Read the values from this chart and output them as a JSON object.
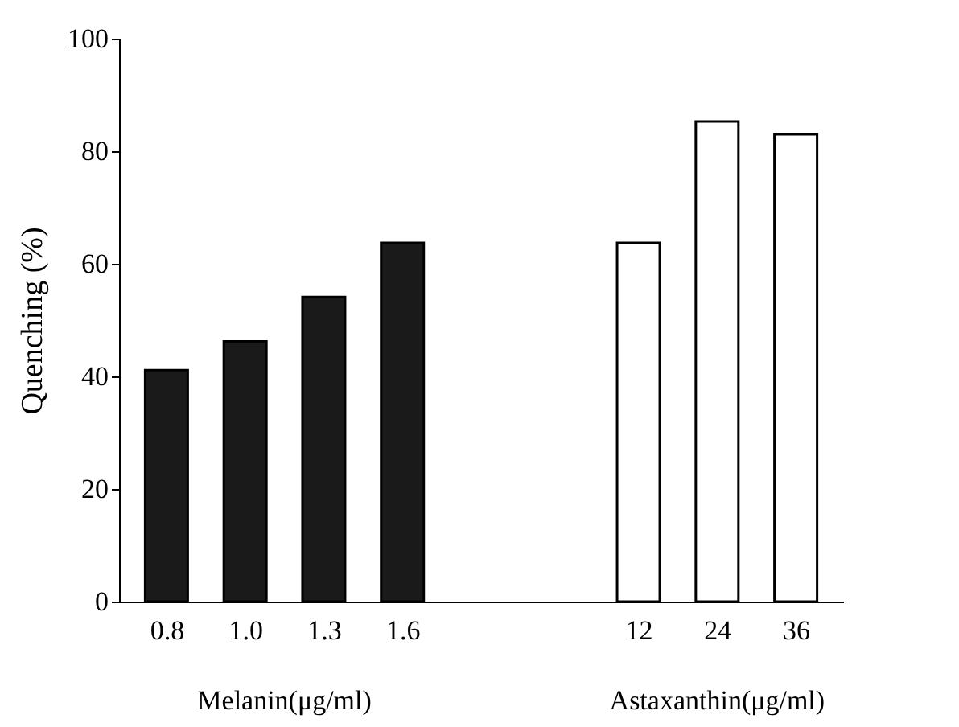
{
  "chart_data": {
    "type": "bar",
    "ylabel": "Quenching (%)",
    "categories": [
      "0.8",
      "1.0",
      "1.3",
      "1.6",
      null,
      null,
      "12",
      "24",
      "36"
    ],
    "series": [
      {
        "color": "#1a1a1a",
        "values": [
          41.1,
          46.2,
          54.1,
          63.7,
          null,
          null,
          null,
          null,
          null
        ]
      },
      {
        "color": "#ffffff",
        "values": [
          null,
          null,
          null,
          null,
          null,
          null,
          63.7,
          85.3,
          83.0
        ]
      }
    ],
    "annotations": [
      "Melanin(μg/ml)",
      "Astaxanthin(μg/ml)"
    ],
    "ylim": [
      0,
      100
    ],
    "yticks": [
      0,
      20,
      40,
      60,
      80,
      100
    ],
    "grid": false
  }
}
